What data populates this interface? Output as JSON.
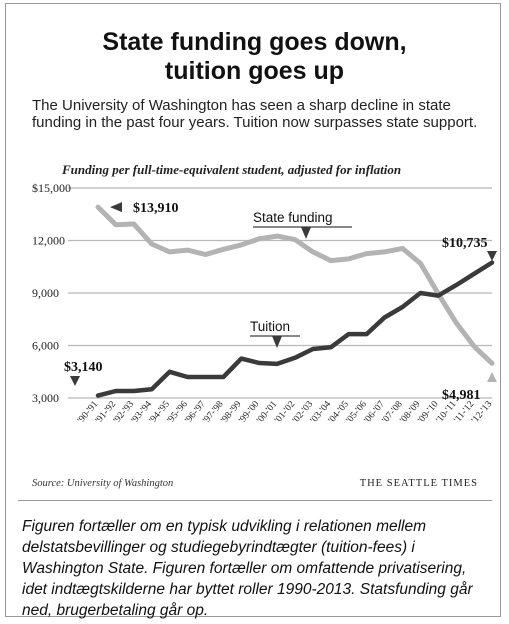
{
  "title_lines": [
    "State funding goes down,",
    "tuition goes up"
  ],
  "subtitle": "The University of Washington has seen a sharp decline in state funding in the past four years. Tuition now surpasses state support.",
  "units_note": "Funding per full-time-equivalent student, adjusted for inflation",
  "source": "Source: University of Washington",
  "brand": "THE SEATTLE TIMES",
  "caption": "Figuren fortæller om en typisk udvikling i relationen mellem delstatsbevillinger og studiegebyrindtægter (tuition-fees) i Washington State. Figuren fortæller om omfattende privatisering, idet indtægtskilderne har byttet roller 1990-2013. Statsfunding går ned, brugerbetaling går op.",
  "colors": {
    "state": "#b3b3b3",
    "tuition": "#3a3a3a",
    "grid": "#b8b8b8",
    "marker": "#3a3a3a"
  },
  "chart_data": {
    "type": "line",
    "title": "State funding goes down, tuition goes up",
    "ylabel": "Funding per full-time-equivalent student, adjusted for inflation",
    "ylim": [
      3000,
      15000
    ],
    "y_ticks": [
      3000,
      6000,
      9000,
      12000,
      15000
    ],
    "y_tick_labels": [
      "3,000",
      "6,000",
      "9,000",
      "12,000",
      "$15,000"
    ],
    "grid": "horizontal",
    "categories": [
      "'90-'91",
      "'91-'92",
      "'92-'93",
      "'93-'94",
      "'94-'95",
      "'95-'96",
      "'96-'97",
      "'97-'98",
      "'98-'99",
      "'99-'00",
      "'00-'01",
      "'01-'02",
      "'02-'03",
      "'03-'04",
      "'04-'05",
      "'05-'06",
      "'06-'07",
      "'07-'08",
      "'08-'09",
      "'09-'10",
      "'10-'11",
      "'11-'12",
      "'12-'13"
    ],
    "series": [
      {
        "name": "State funding",
        "values": [
          13910,
          12900,
          12950,
          11800,
          11350,
          11450,
          11200,
          11500,
          11750,
          12100,
          12250,
          12050,
          11350,
          10850,
          10950,
          11250,
          11350,
          11550,
          10700,
          8950,
          7300,
          5950,
          4981
        ]
      },
      {
        "name": "Tuition",
        "values": [
          3140,
          3400,
          3400,
          3500,
          4500,
          4200,
          4200,
          4200,
          5250,
          5000,
          4950,
          5300,
          5800,
          5900,
          6650,
          6650,
          7600,
          8200,
          9000,
          8850,
          9450,
          10100,
          10735
        ]
      }
    ],
    "annotations": [
      {
        "text": "$13,910",
        "series": "State funding",
        "category": "'90-'91"
      },
      {
        "text": "$3,140",
        "series": "Tuition",
        "category": "'90-'91"
      },
      {
        "text": "$10,735",
        "series": "Tuition",
        "category": "'12-'13"
      },
      {
        "text": "$4,981",
        "series": "State funding",
        "category": "'12-'13"
      }
    ]
  }
}
